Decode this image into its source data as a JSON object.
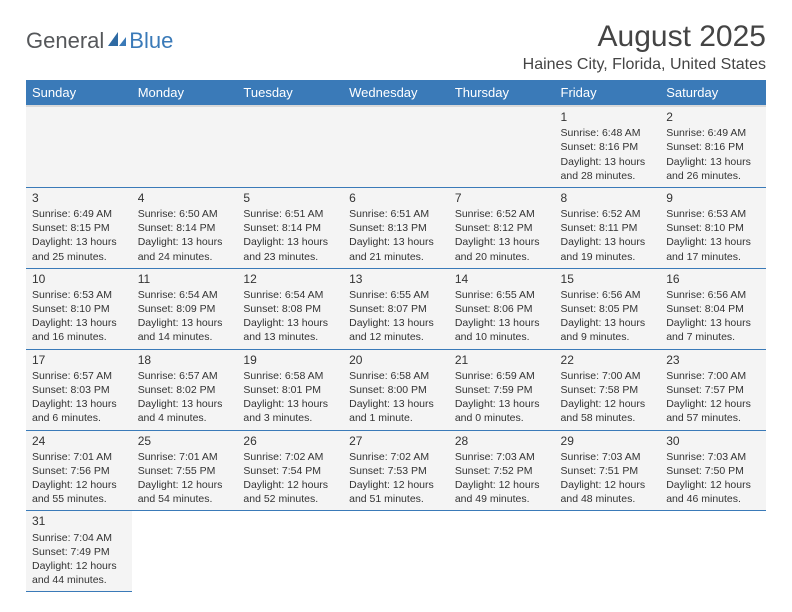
{
  "logo": {
    "text1": "General",
    "text2": "Blue"
  },
  "title": "August 2025",
  "location": "Haines City, Florida, United States",
  "colors": {
    "header_bg": "#3a7ab8",
    "header_text": "#ffffff",
    "cell_bg": "#f4f4f4",
    "border": "#3a7ab8",
    "text": "#333333",
    "logo_gray": "#55575a",
    "logo_blue": "#3a7ab8"
  },
  "typography": {
    "title_fontsize": 30,
    "location_fontsize": 16,
    "dayheader_fontsize": 13,
    "cell_fontsize": 10.5,
    "daynum_fontsize": 12
  },
  "day_headers": [
    "Sunday",
    "Monday",
    "Tuesday",
    "Wednesday",
    "Thursday",
    "Friday",
    "Saturday"
  ],
  "weeks": [
    [
      null,
      null,
      null,
      null,
      null,
      {
        "n": "1",
        "sr": "Sunrise: 6:48 AM",
        "ss": "Sunset: 8:16 PM",
        "dl": "Daylight: 13 hours and 28 minutes."
      },
      {
        "n": "2",
        "sr": "Sunrise: 6:49 AM",
        "ss": "Sunset: 8:16 PM",
        "dl": "Daylight: 13 hours and 26 minutes."
      }
    ],
    [
      {
        "n": "3",
        "sr": "Sunrise: 6:49 AM",
        "ss": "Sunset: 8:15 PM",
        "dl": "Daylight: 13 hours and 25 minutes."
      },
      {
        "n": "4",
        "sr": "Sunrise: 6:50 AM",
        "ss": "Sunset: 8:14 PM",
        "dl": "Daylight: 13 hours and 24 minutes."
      },
      {
        "n": "5",
        "sr": "Sunrise: 6:51 AM",
        "ss": "Sunset: 8:14 PM",
        "dl": "Daylight: 13 hours and 23 minutes."
      },
      {
        "n": "6",
        "sr": "Sunrise: 6:51 AM",
        "ss": "Sunset: 8:13 PM",
        "dl": "Daylight: 13 hours and 21 minutes."
      },
      {
        "n": "7",
        "sr": "Sunrise: 6:52 AM",
        "ss": "Sunset: 8:12 PM",
        "dl": "Daylight: 13 hours and 20 minutes."
      },
      {
        "n": "8",
        "sr": "Sunrise: 6:52 AM",
        "ss": "Sunset: 8:11 PM",
        "dl": "Daylight: 13 hours and 19 minutes."
      },
      {
        "n": "9",
        "sr": "Sunrise: 6:53 AM",
        "ss": "Sunset: 8:10 PM",
        "dl": "Daylight: 13 hours and 17 minutes."
      }
    ],
    [
      {
        "n": "10",
        "sr": "Sunrise: 6:53 AM",
        "ss": "Sunset: 8:10 PM",
        "dl": "Daylight: 13 hours and 16 minutes."
      },
      {
        "n": "11",
        "sr": "Sunrise: 6:54 AM",
        "ss": "Sunset: 8:09 PM",
        "dl": "Daylight: 13 hours and 14 minutes."
      },
      {
        "n": "12",
        "sr": "Sunrise: 6:54 AM",
        "ss": "Sunset: 8:08 PM",
        "dl": "Daylight: 13 hours and 13 minutes."
      },
      {
        "n": "13",
        "sr": "Sunrise: 6:55 AM",
        "ss": "Sunset: 8:07 PM",
        "dl": "Daylight: 13 hours and 12 minutes."
      },
      {
        "n": "14",
        "sr": "Sunrise: 6:55 AM",
        "ss": "Sunset: 8:06 PM",
        "dl": "Daylight: 13 hours and 10 minutes."
      },
      {
        "n": "15",
        "sr": "Sunrise: 6:56 AM",
        "ss": "Sunset: 8:05 PM",
        "dl": "Daylight: 13 hours and 9 minutes."
      },
      {
        "n": "16",
        "sr": "Sunrise: 6:56 AM",
        "ss": "Sunset: 8:04 PM",
        "dl": "Daylight: 13 hours and 7 minutes."
      }
    ],
    [
      {
        "n": "17",
        "sr": "Sunrise: 6:57 AM",
        "ss": "Sunset: 8:03 PM",
        "dl": "Daylight: 13 hours and 6 minutes."
      },
      {
        "n": "18",
        "sr": "Sunrise: 6:57 AM",
        "ss": "Sunset: 8:02 PM",
        "dl": "Daylight: 13 hours and 4 minutes."
      },
      {
        "n": "19",
        "sr": "Sunrise: 6:58 AM",
        "ss": "Sunset: 8:01 PM",
        "dl": "Daylight: 13 hours and 3 minutes."
      },
      {
        "n": "20",
        "sr": "Sunrise: 6:58 AM",
        "ss": "Sunset: 8:00 PM",
        "dl": "Daylight: 13 hours and 1 minute."
      },
      {
        "n": "21",
        "sr": "Sunrise: 6:59 AM",
        "ss": "Sunset: 7:59 PM",
        "dl": "Daylight: 13 hours and 0 minutes."
      },
      {
        "n": "22",
        "sr": "Sunrise: 7:00 AM",
        "ss": "Sunset: 7:58 PM",
        "dl": "Daylight: 12 hours and 58 minutes."
      },
      {
        "n": "23",
        "sr": "Sunrise: 7:00 AM",
        "ss": "Sunset: 7:57 PM",
        "dl": "Daylight: 12 hours and 57 minutes."
      }
    ],
    [
      {
        "n": "24",
        "sr": "Sunrise: 7:01 AM",
        "ss": "Sunset: 7:56 PM",
        "dl": "Daylight: 12 hours and 55 minutes."
      },
      {
        "n": "25",
        "sr": "Sunrise: 7:01 AM",
        "ss": "Sunset: 7:55 PM",
        "dl": "Daylight: 12 hours and 54 minutes."
      },
      {
        "n": "26",
        "sr": "Sunrise: 7:02 AM",
        "ss": "Sunset: 7:54 PM",
        "dl": "Daylight: 12 hours and 52 minutes."
      },
      {
        "n": "27",
        "sr": "Sunrise: 7:02 AM",
        "ss": "Sunset: 7:53 PM",
        "dl": "Daylight: 12 hours and 51 minutes."
      },
      {
        "n": "28",
        "sr": "Sunrise: 7:03 AM",
        "ss": "Sunset: 7:52 PM",
        "dl": "Daylight: 12 hours and 49 minutes."
      },
      {
        "n": "29",
        "sr": "Sunrise: 7:03 AM",
        "ss": "Sunset: 7:51 PM",
        "dl": "Daylight: 12 hours and 48 minutes."
      },
      {
        "n": "30",
        "sr": "Sunrise: 7:03 AM",
        "ss": "Sunset: 7:50 PM",
        "dl": "Daylight: 12 hours and 46 minutes."
      }
    ],
    [
      {
        "n": "31",
        "sr": "Sunrise: 7:04 AM",
        "ss": "Sunset: 7:49 PM",
        "dl": "Daylight: 12 hours and 44 minutes."
      },
      null,
      null,
      null,
      null,
      null,
      null
    ]
  ]
}
